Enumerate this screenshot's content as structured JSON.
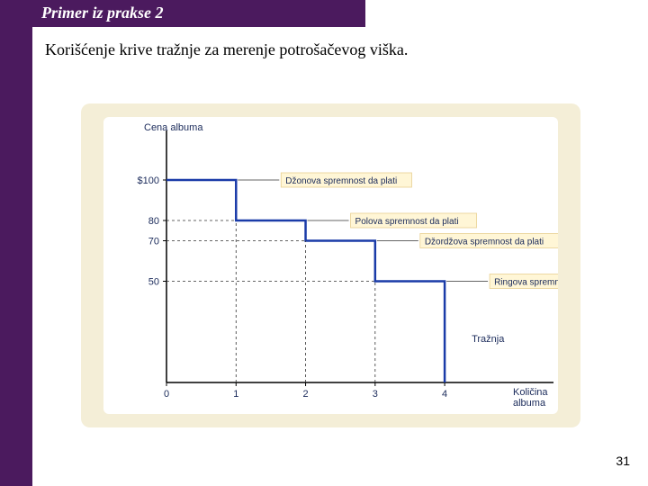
{
  "header": {
    "title": "Primer iz prakse 2"
  },
  "subtitle": "Korišćenje krive tražnje za merenje potrošačevog viška.",
  "page_number": "31",
  "chart": {
    "type": "step-line",
    "y_axis_label": "Cena albuma",
    "x_axis_label": "Količina\nalbuma",
    "x_ticks": [
      0,
      1,
      2,
      3,
      4
    ],
    "y_ticks": [
      {
        "value": 100,
        "label": "$100"
      },
      {
        "value": 80,
        "label": "80"
      },
      {
        "value": 70,
        "label": "70"
      },
      {
        "value": 50,
        "label": "50"
      }
    ],
    "y_range": [
      0,
      120
    ],
    "x_range": [
      0,
      5.5
    ],
    "step_points": [
      [
        0,
        100
      ],
      [
        1,
        100
      ],
      [
        1,
        80
      ],
      [
        2,
        80
      ],
      [
        2,
        70
      ],
      [
        3,
        70
      ],
      [
        3,
        50
      ],
      [
        4,
        50
      ],
      [
        4,
        0
      ]
    ],
    "annotations": [
      {
        "text": "Džonova spremnost da plati",
        "y": 100,
        "x_from": 1
      },
      {
        "text": "Polova spremnost da plati",
        "y": 80,
        "x_from": 2
      },
      {
        "text": "Džordžova spremnost da plati",
        "y": 70,
        "x_from": 3
      },
      {
        "text": "Ringova spremnost da plati",
        "y": 50,
        "x_from": 4
      }
    ],
    "demand_label": "Tražnja",
    "line_color": "#1a3ba8",
    "dash_color": "#333333",
    "annotation_bg": "#fff6d6",
    "annotation_border": "#e8d090",
    "text_color": "#1a2a5a",
    "axis_color": "#000000",
    "font_family": "Arial, sans-serif",
    "label_fontsize": 11,
    "axis_fontsize": 11
  }
}
